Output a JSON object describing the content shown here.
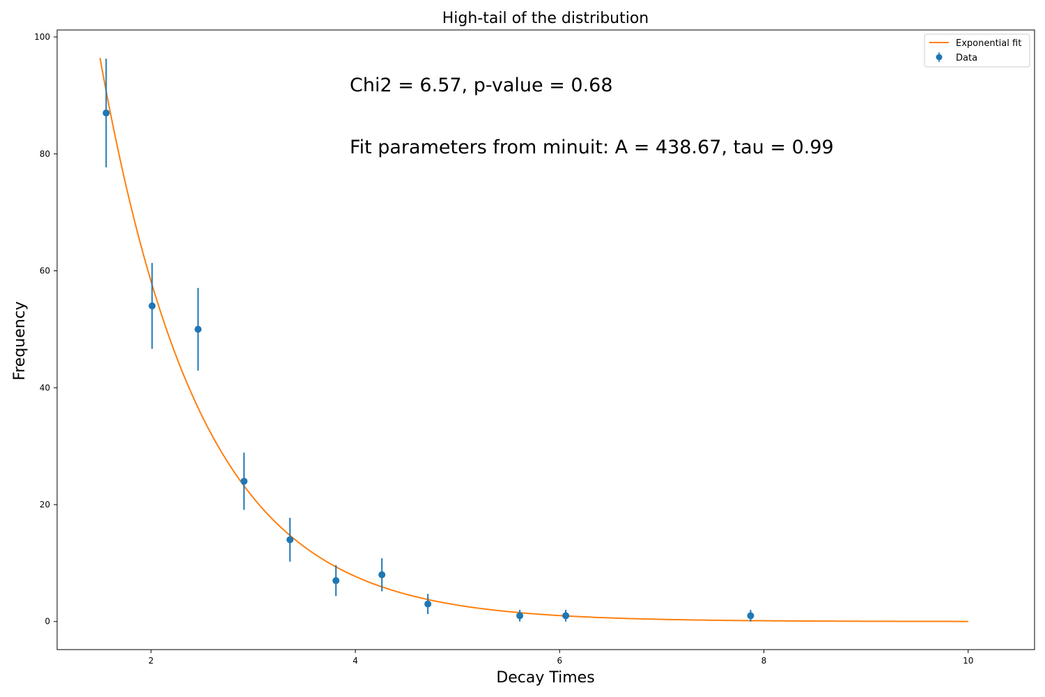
{
  "chart_data": {
    "type": "scatter",
    "title": "High-tail of the distribution",
    "xlabel": "Decay Times",
    "ylabel": "Frequency",
    "xlim": [
      1.08,
      10.65
    ],
    "ylim": [
      -4.8,
      101.2
    ],
    "xticks": [
      2,
      4,
      6,
      8,
      10
    ],
    "yticks": [
      0,
      20,
      40,
      60,
      80,
      100
    ],
    "grid": false,
    "legend_position": "top-right",
    "annotations": [
      "Chi2 = 6.57, p-value = 0.68",
      "Fit parameters from minuit: A = 438.67, tau = 0.99"
    ],
    "series": [
      {
        "name": "Exponential fit",
        "kind": "line",
        "color": "#ff7f0e",
        "x_range": [
          1.5,
          10.0
        ],
        "A": 438.67,
        "tau": 0.99
      },
      {
        "name": "Data",
        "kind": "errorbar",
        "color": "#1f77b4",
        "x": [
          1.56,
          2.01,
          2.46,
          2.91,
          3.36,
          3.81,
          4.26,
          4.71,
          5.61,
          6.06,
          7.87
        ],
        "y": [
          87,
          54,
          50,
          24,
          14,
          7,
          8,
          3,
          1,
          1,
          1
        ],
        "yerr": [
          9.3,
          7.35,
          7.07,
          4.9,
          3.74,
          2.65,
          2.83,
          1.73,
          1,
          1,
          1
        ]
      }
    ]
  }
}
